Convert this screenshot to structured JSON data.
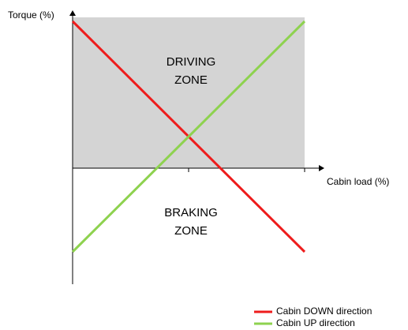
{
  "y_axis_label": "Torque (%)",
  "x_axis_label": "Cabin load (%)",
  "driving_zone": [
    "DRIVING",
    "ZONE"
  ],
  "braking_zone": [
    "BRAKING",
    "ZONE"
  ],
  "legend": [
    {
      "name": "Cabin DOWN direction",
      "color": "#ee1c1c"
    },
    {
      "name": "Cabin UP direction",
      "color": "#8ed24f"
    }
  ]
}
